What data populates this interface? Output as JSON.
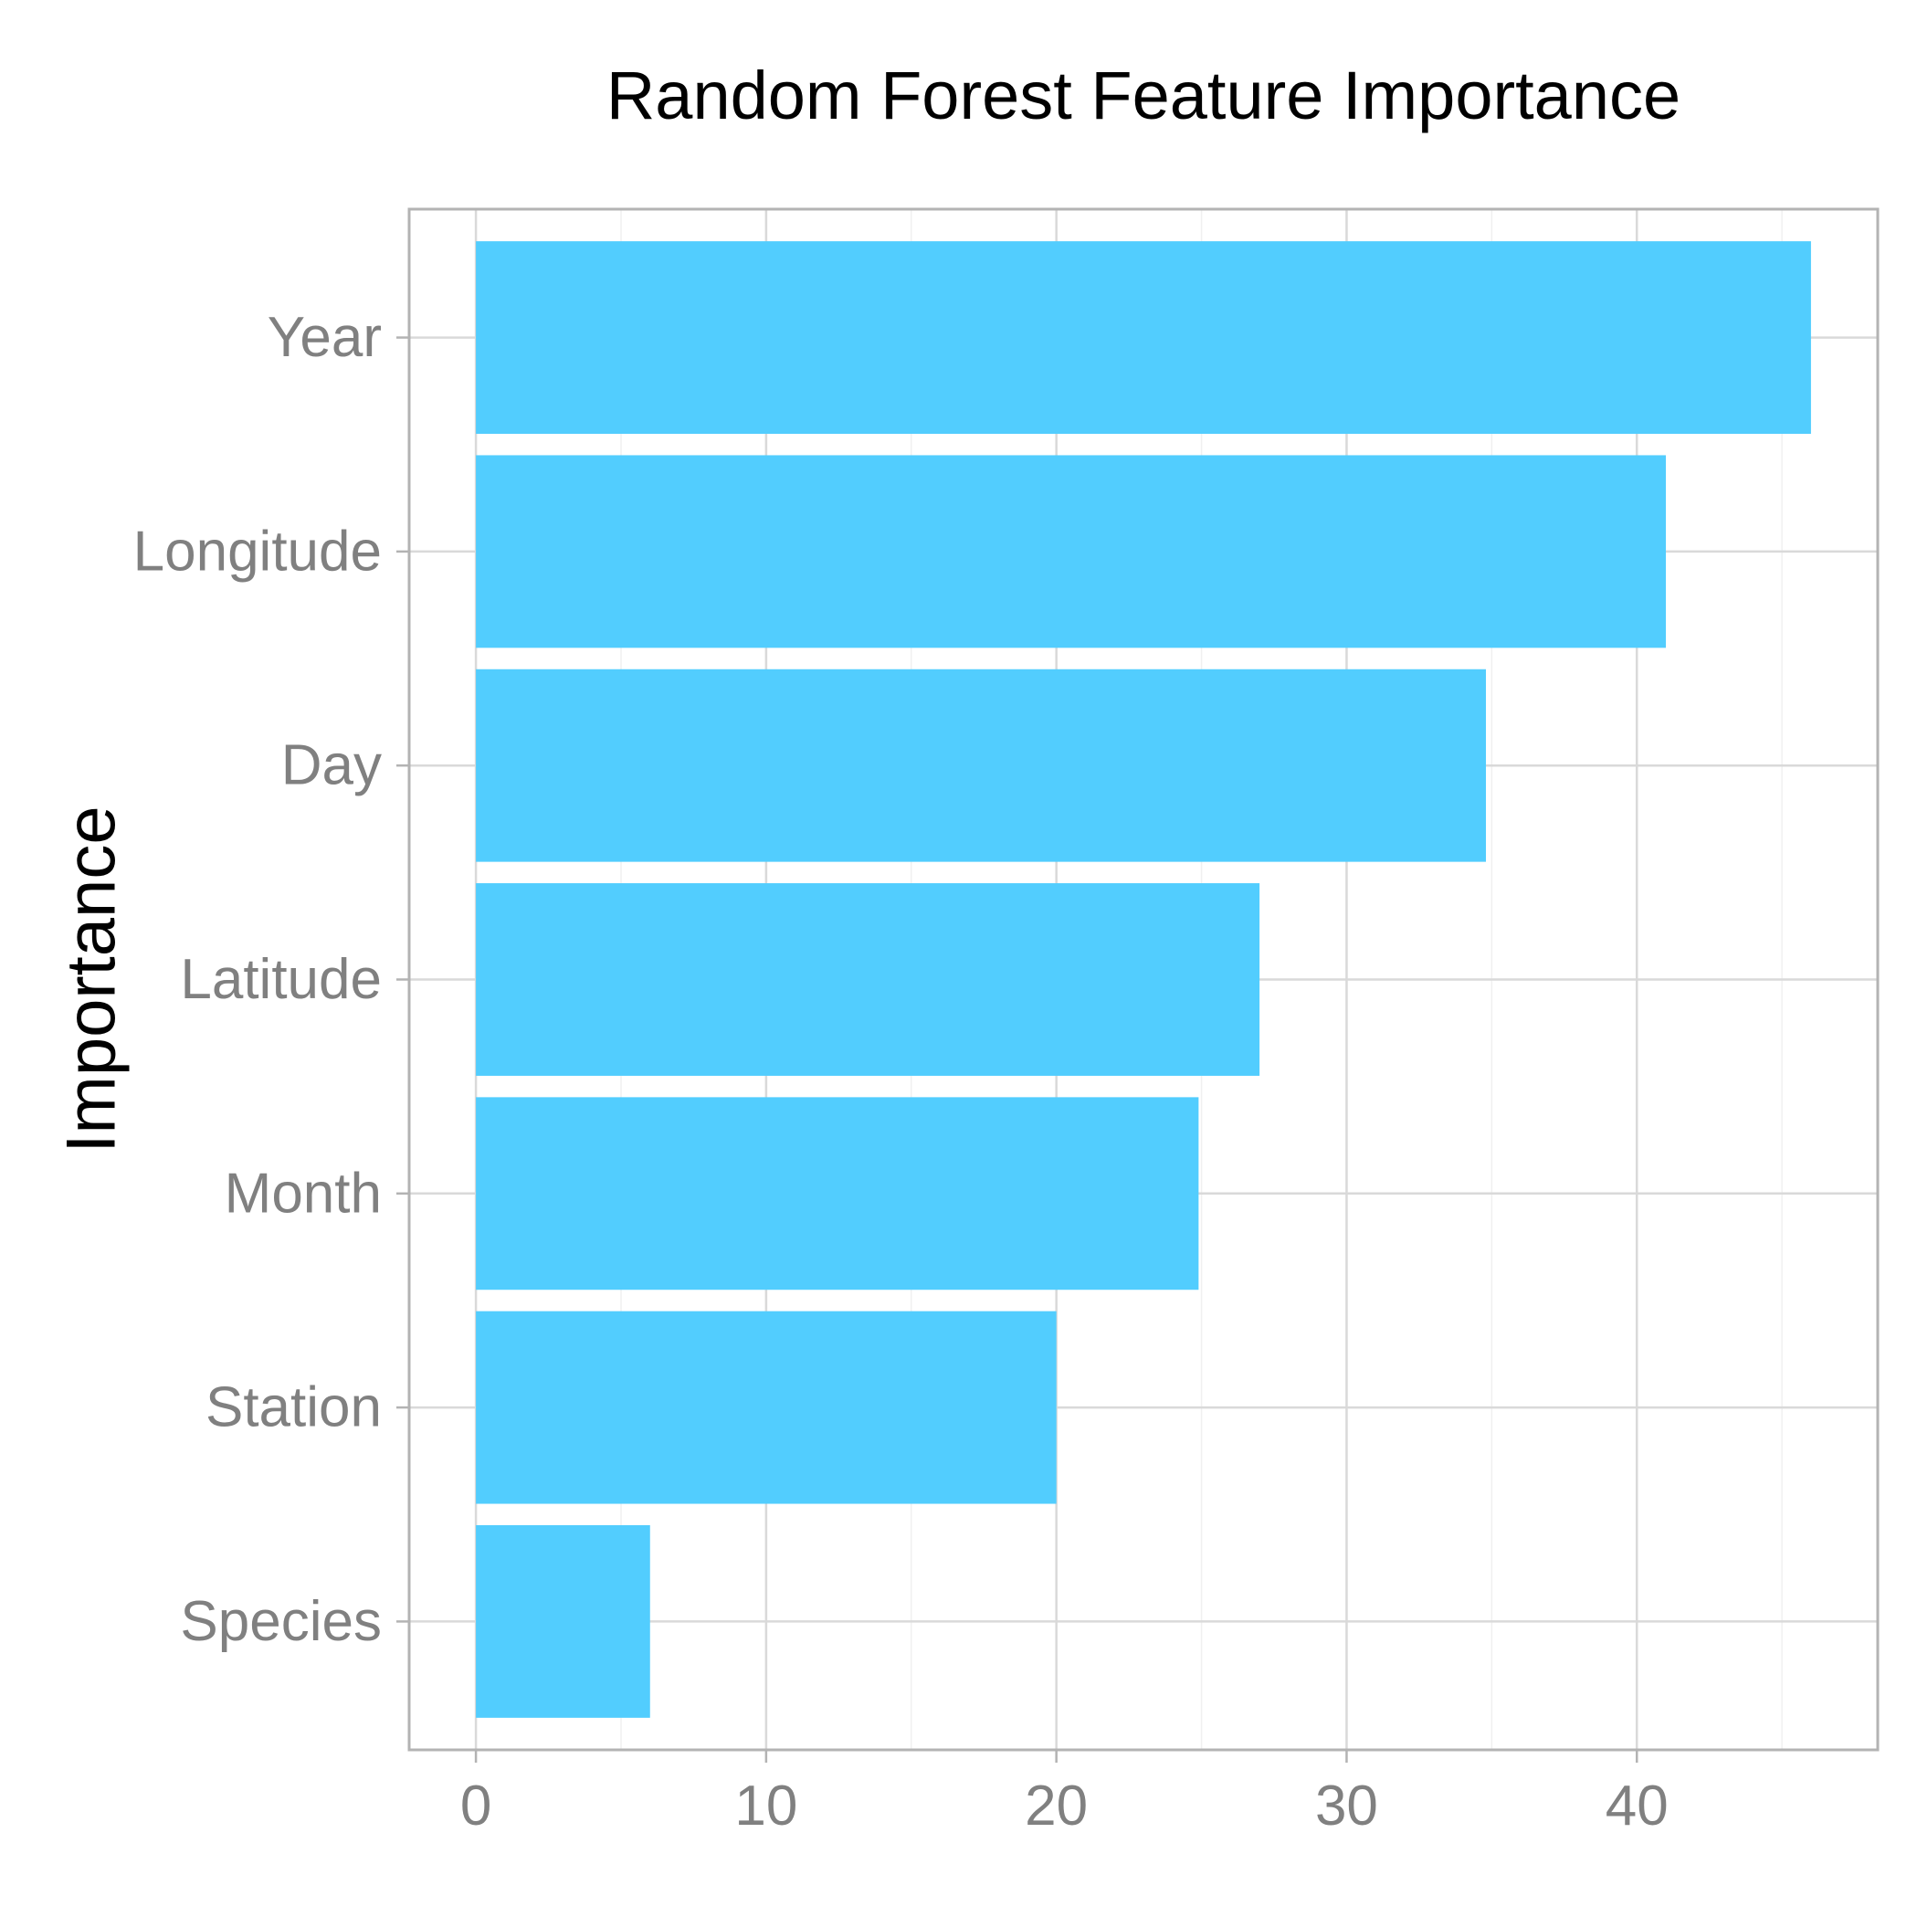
{
  "chart_data": {
    "type": "bar",
    "orientation": "horizontal",
    "title": "Random Forest Feature Importance",
    "ylabel": "Importance",
    "xlabel": "",
    "categories": [
      "Year",
      "Longitude",
      "Day",
      "Latitude",
      "Month",
      "Station",
      "Species"
    ],
    "values": [
      46,
      41,
      34.8,
      27,
      24.9,
      20,
      6
    ],
    "xlim": [
      -2.3,
      48.3
    ],
    "xticks": [
      0,
      10,
      20,
      30,
      40
    ],
    "xtick_labels": [
      "0",
      "10",
      "20",
      "30",
      "40"
    ],
    "bar_color": "#52CDFE",
    "grid": true,
    "legend": "none"
  }
}
